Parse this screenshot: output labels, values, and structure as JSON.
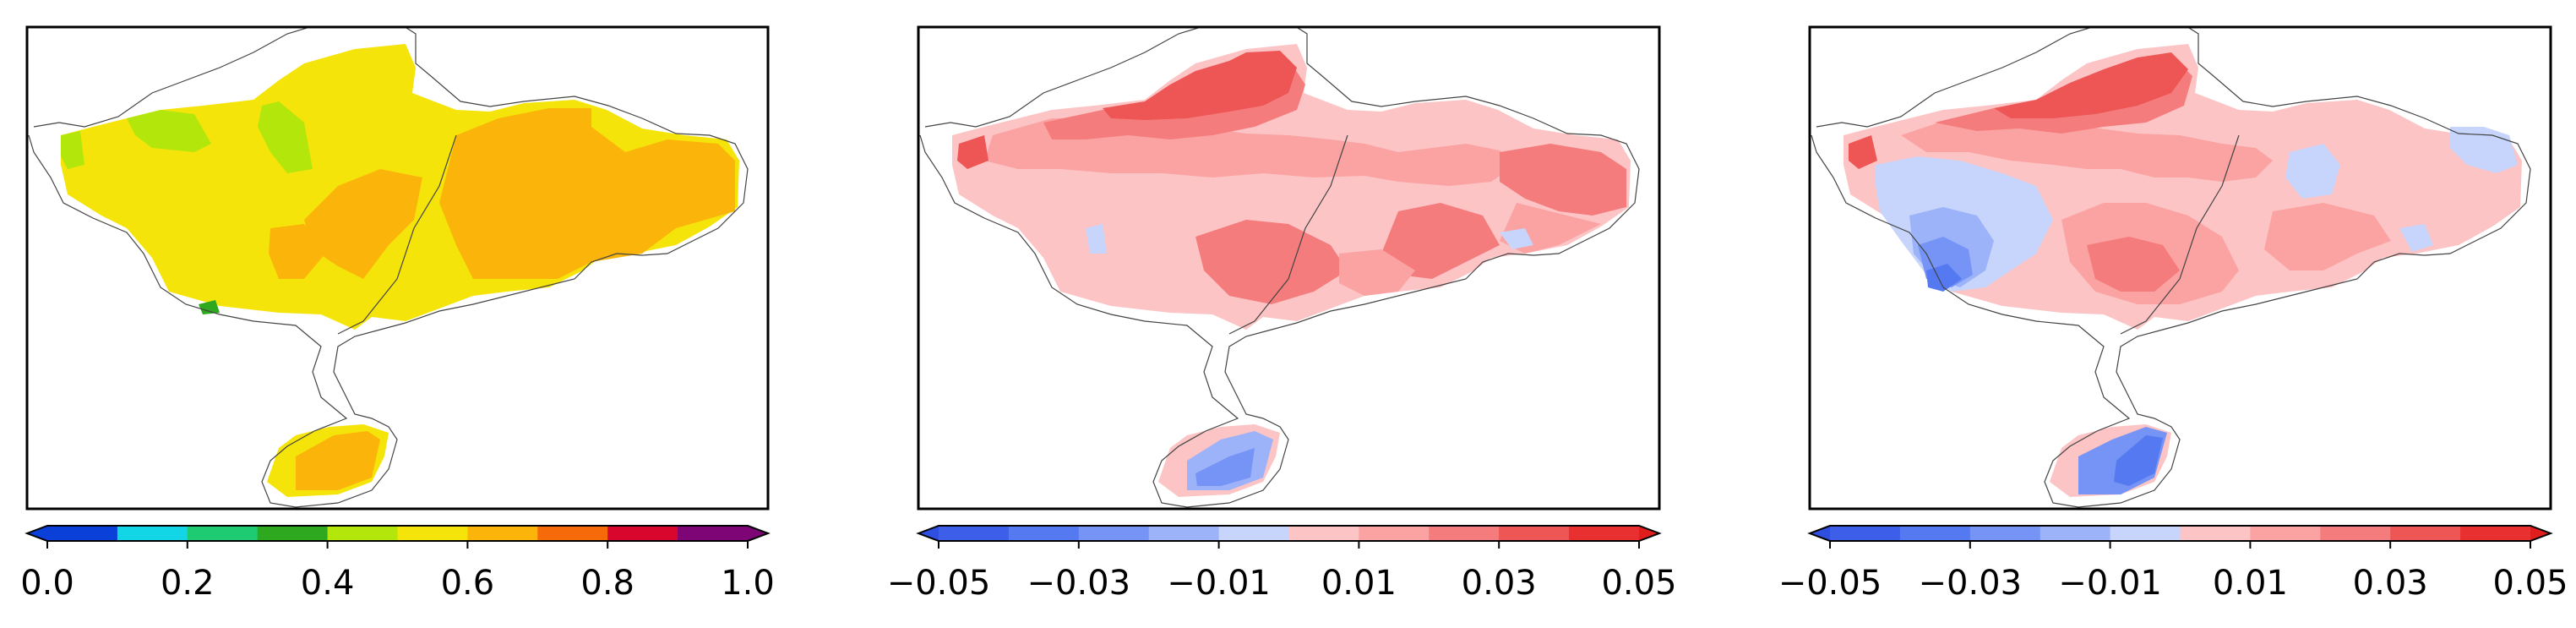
{
  "chart_data": [
    {
      "type": "heatmap",
      "title": "",
      "xlabel": "",
      "ylabel": "",
      "colorbar": {
        "orientation": "horizontal",
        "extend": "both",
        "range": [
          0.0,
          1.0
        ],
        "levels": [
          0.0,
          0.1,
          0.2,
          0.3,
          0.4,
          0.5,
          0.6,
          0.7,
          0.8,
          0.9,
          1.0
        ],
        "colors": [
          "#0a3fd8",
          "#12d6e6",
          "#1ecb73",
          "#2ea81e",
          "#b3e60a",
          "#f5e40a",
          "#fbb40a",
          "#f66a0a",
          "#d8062d",
          "#7d0575"
        ],
        "under_color": "#0a3fd8",
        "over_color": "#7d0575",
        "ticks": [
          0.0,
          0.2,
          0.4,
          0.6,
          0.8,
          1.0
        ],
        "tick_labels": [
          "0.0",
          "0.2",
          "0.4",
          "0.6",
          "0.8",
          "1.0"
        ]
      },
      "field": {
        "dominant_value": 0.55,
        "regions": [
          {
            "value": 0.55,
            "description": "western basin"
          },
          {
            "value": 0.65,
            "description": "eastern basin"
          },
          {
            "value": 0.45,
            "description": "north-west patches"
          },
          {
            "value": 0.65,
            "description": "southern island"
          }
        ]
      }
    },
    {
      "type": "heatmap",
      "title": "",
      "xlabel": "",
      "ylabel": "",
      "colorbar": {
        "orientation": "horizontal",
        "extend": "both",
        "range": [
          -0.05,
          0.05
        ],
        "levels": [
          -0.05,
          -0.04,
          -0.03,
          -0.02,
          -0.01,
          0.0,
          0.01,
          0.02,
          0.03,
          0.04,
          0.05
        ],
        "colors": [
          "#3d5ee8",
          "#5579f0",
          "#7594f5",
          "#9cb2f9",
          "#c7d4fb",
          "#fcc4c4",
          "#fba2a2",
          "#f57c7c",
          "#ee5555",
          "#e83030"
        ],
        "under_color": "#2f4fe0",
        "over_color": "#e01e1e",
        "ticks": [
          -0.05,
          -0.03,
          -0.01,
          0.01,
          0.03,
          0.05
        ],
        "tick_labels": [
          "−0.05",
          "−0.03",
          "−0.01",
          "0.01",
          "0.03",
          "0.05"
        ]
      },
      "field": {
        "dominant_value": 0.005,
        "regions": [
          {
            "value": 0.005,
            "description": "basin background"
          },
          {
            "value": 0.015,
            "description": "north-central band"
          },
          {
            "value": 0.035,
            "description": "northern peak"
          },
          {
            "value": 0.025,
            "description": "southern centre"
          },
          {
            "value": -0.015,
            "description": "southern island"
          }
        ]
      }
    },
    {
      "type": "heatmap",
      "title": "",
      "xlabel": "",
      "ylabel": "",
      "colorbar": {
        "orientation": "horizontal",
        "extend": "both",
        "range": [
          -0.05,
          0.05
        ],
        "levels": [
          -0.05,
          -0.04,
          -0.03,
          -0.02,
          -0.01,
          0.0,
          0.01,
          0.02,
          0.03,
          0.04,
          0.05
        ],
        "colors": [
          "#3d5ee8",
          "#5579f0",
          "#7594f5",
          "#9cb2f9",
          "#c7d4fb",
          "#fcc4c4",
          "#fba2a2",
          "#f57c7c",
          "#ee5555",
          "#e83030"
        ],
        "under_color": "#2f4fe0",
        "over_color": "#e01e1e",
        "ticks": [
          -0.05,
          -0.03,
          -0.01,
          0.01,
          0.03,
          0.05
        ],
        "tick_labels": [
          "−0.05",
          "−0.03",
          "−0.01",
          "0.01",
          "0.03",
          "0.05"
        ]
      },
      "field": {
        "dominant_value": 0.005,
        "regions": [
          {
            "value": 0.005,
            "description": "basin background"
          },
          {
            "value": 0.015,
            "description": "central band"
          },
          {
            "value": 0.035,
            "description": "northern peak"
          },
          {
            "value": -0.005,
            "description": "western trough"
          },
          {
            "value": -0.035,
            "description": "south-west minimum"
          },
          {
            "value": -0.025,
            "description": "southern island"
          }
        ]
      }
    }
  ]
}
